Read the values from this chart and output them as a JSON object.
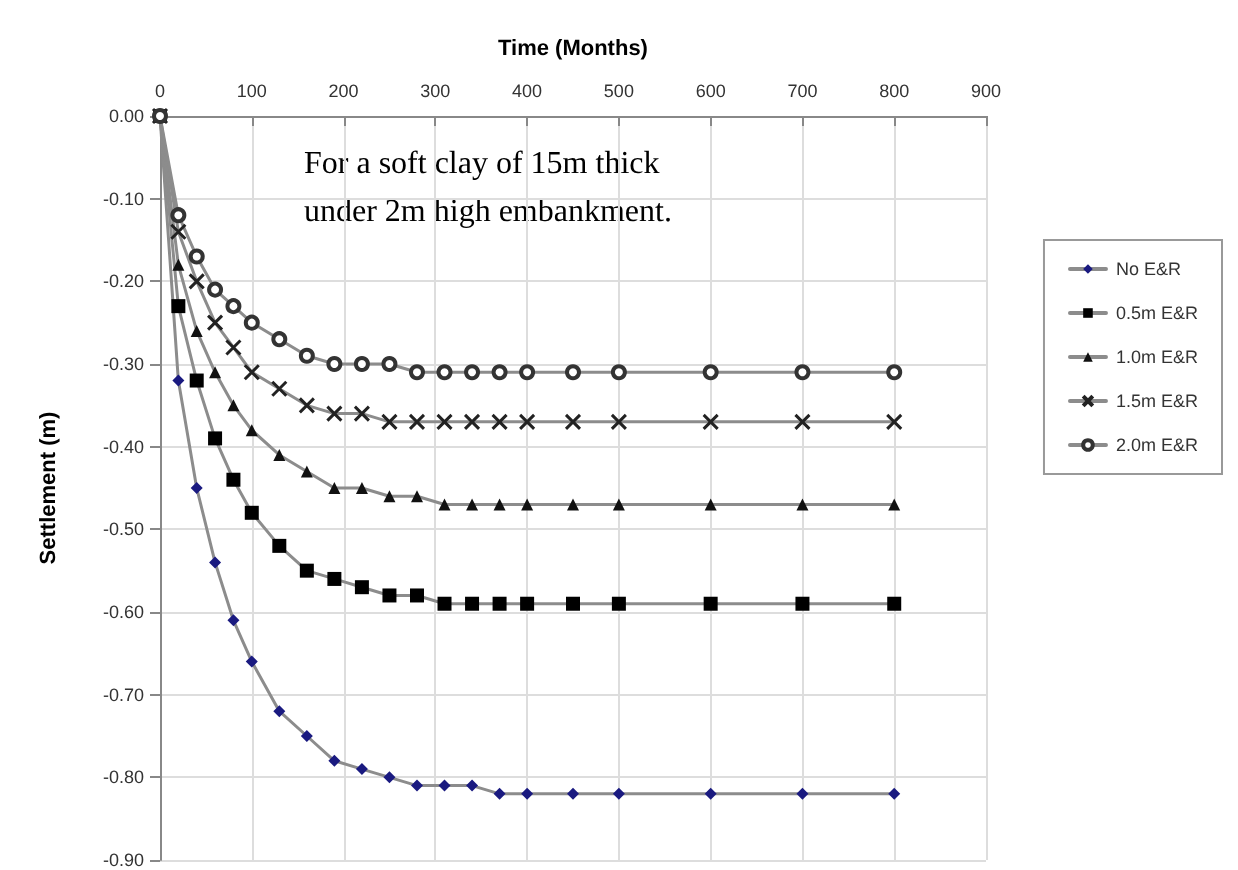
{
  "chart_data": {
    "type": "line",
    "xlabel": "Time (Months)",
    "ylabel": "Settlement (m)",
    "annotations": [
      "For a soft clay of 15m thick under 2m high embankment."
    ],
    "x": [
      0,
      20,
      40,
      60,
      80,
      100,
      130,
      160,
      190,
      220,
      250,
      280,
      310,
      340,
      370,
      400,
      450,
      500,
      600,
      700,
      800
    ],
    "xlim": [
      0,
      900
    ],
    "xticks": [
      0,
      100,
      200,
      300,
      400,
      500,
      600,
      700,
      800,
      900
    ],
    "ylim": [
      -0.9,
      0
    ],
    "yticks": [
      {
        "value": 0,
        "label": "0.00"
      },
      {
        "value": -0.1,
        "label": "-0.10"
      },
      {
        "value": -0.2,
        "label": "-0.20"
      },
      {
        "value": -0.3,
        "label": "-0.30"
      },
      {
        "value": -0.4,
        "label": "-0.40"
      },
      {
        "value": -0.5,
        "label": "-0.50"
      },
      {
        "value": -0.6,
        "label": "-0.60"
      },
      {
        "value": -0.7,
        "label": "-0.70"
      },
      {
        "value": -0.8,
        "label": "-0.80"
      },
      {
        "value": -0.9,
        "label": "-0.90"
      }
    ],
    "grid": true,
    "legend": "right",
    "line_style": "solid",
    "series": [
      {
        "name": "No E&R",
        "color": "#1a1a80",
        "marker": "diamond",
        "values": [
          0,
          -0.32,
          -0.45,
          -0.54,
          -0.61,
          -0.66,
          -0.72,
          -0.75,
          -0.78,
          -0.79,
          -0.8,
          -0.81,
          -0.81,
          -0.81,
          -0.82,
          -0.82,
          -0.82,
          -0.82,
          -0.82,
          -0.82,
          -0.82
        ]
      },
      {
        "name": "0.5m E&R",
        "color": "#000000",
        "marker": "square",
        "values": [
          0,
          -0.23,
          -0.32,
          -0.39,
          -0.44,
          -0.48,
          -0.52,
          -0.55,
          -0.56,
          -0.57,
          -0.58,
          -0.58,
          -0.59,
          -0.59,
          -0.59,
          -0.59,
          -0.59,
          -0.59,
          -0.59,
          -0.59,
          -0.59
        ]
      },
      {
        "name": "1.0m E&R",
        "color": "#111111",
        "marker": "triangle",
        "values": [
          0,
          -0.18,
          -0.26,
          -0.31,
          -0.35,
          -0.38,
          -0.41,
          -0.43,
          -0.45,
          -0.45,
          -0.46,
          -0.46,
          -0.47,
          -0.47,
          -0.47,
          -0.47,
          -0.47,
          -0.47,
          -0.47,
          -0.47,
          -0.47
        ]
      },
      {
        "name": "1.5m E&R",
        "color": "#222222",
        "marker": "cross",
        "values": [
          0,
          -0.14,
          -0.2,
          -0.25,
          -0.28,
          -0.31,
          -0.33,
          -0.35,
          -0.36,
          -0.36,
          -0.37,
          -0.37,
          -0.37,
          -0.37,
          -0.37,
          -0.37,
          -0.37,
          -0.37,
          -0.37,
          -0.37,
          -0.37
        ]
      },
      {
        "name": "2.0m E&R",
        "color": "#333333",
        "marker": "circle",
        "values": [
          0,
          -0.12,
          -0.17,
          -0.21,
          -0.23,
          -0.25,
          -0.27,
          -0.29,
          -0.3,
          -0.3,
          -0.3,
          -0.31,
          -0.31,
          -0.31,
          -0.31,
          -0.31,
          -0.31,
          -0.31,
          -0.31,
          -0.31,
          -0.31
        ]
      }
    ]
  }
}
